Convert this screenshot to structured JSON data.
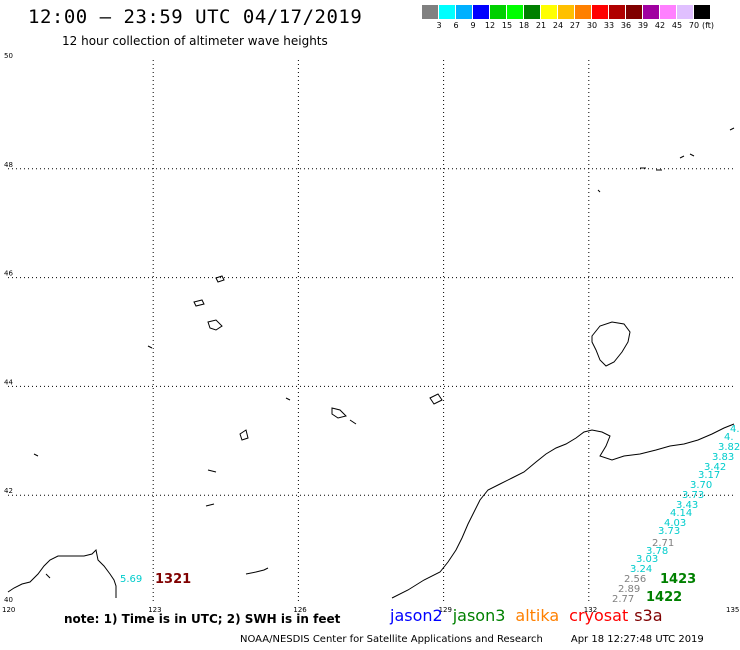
{
  "header": {
    "title": "12:00 – 23:59 UTC 04/17/2019",
    "subtitle": "12 hour collection of altimeter wave heights"
  },
  "legend": {
    "units": "(ft)",
    "swatches": [
      "#808080",
      "#00ffff",
      "#00b0ff",
      "#0000ff",
      "#00d000",
      "#00ff00",
      "#008000",
      "#ffff00",
      "#ffc000",
      "#ff8000",
      "#ff0000",
      "#b00000",
      "#800000",
      "#a000a0",
      "#ff80ff",
      "#e0c0ff",
      "#000000"
    ],
    "labels": [
      "3",
      "6",
      "9",
      "12",
      "15",
      "18",
      "21",
      "24",
      "27",
      "30",
      "33",
      "36",
      "39",
      "42",
      "45",
      "70"
    ]
  },
  "map": {
    "lat_ticks": [
      "50",
      "48",
      "46",
      "44",
      "42",
      "40"
    ],
    "lon_ticks": [
      "120",
      "123",
      "126",
      "129",
      "132",
      "135"
    ],
    "wave_heights": [
      {
        "value": "5.69",
        "color": "#00cccc"
      },
      {
        "value": "2.77",
        "color": "#808080"
      },
      {
        "value": "2.89",
        "color": "#808080"
      },
      {
        "value": "2.56",
        "color": "#808080"
      },
      {
        "value": "3.24",
        "color": "#00cccc"
      },
      {
        "value": "3.03",
        "color": "#00cccc"
      },
      {
        "value": "3.78",
        "color": "#00cccc"
      },
      {
        "value": "2.71",
        "color": "#808080"
      },
      {
        "value": "3.73",
        "color": "#00cccc"
      },
      {
        "value": "4.03",
        "color": "#00cccc"
      },
      {
        "value": "4.14",
        "color": "#00cccc"
      },
      {
        "value": "3.43",
        "color": "#00cccc"
      },
      {
        "value": "3.73",
        "color": "#00cccc"
      },
      {
        "value": "3.70",
        "color": "#00cccc"
      },
      {
        "value": "3.17",
        "color": "#00cccc"
      },
      {
        "value": "3.42",
        "color": "#00cccc"
      },
      {
        "value": "3.83",
        "color": "#00cccc"
      },
      {
        "value": "3.82",
        "color": "#00cccc"
      },
      {
        "value": "4.",
        "color": "#00cccc"
      },
      {
        "value": "4.",
        "color": "#00cccc"
      }
    ],
    "pass_times": [
      {
        "value": "1321",
        "color": "#800000"
      },
      {
        "value": "1423",
        "color": "#008000"
      },
      {
        "value": "1422",
        "color": "#008000"
      }
    ]
  },
  "note": "note: 1) Time is in UTC; 2) SWH is in feet",
  "satellites": [
    {
      "name": "jason2",
      "color": "#0000ff"
    },
    {
      "name": "jason3",
      "color": "#008000"
    },
    {
      "name": "altika",
      "color": "#ff8000"
    },
    {
      "name": "cryosat",
      "color": "#ff0000"
    },
    {
      "name": "s3a",
      "color": "#800000"
    }
  ],
  "footer": {
    "credit": "NOAA/NESDIS Center for Satellite Applications and Research",
    "timestamp": "Apr 18 12:27:48 UTC 2019"
  }
}
